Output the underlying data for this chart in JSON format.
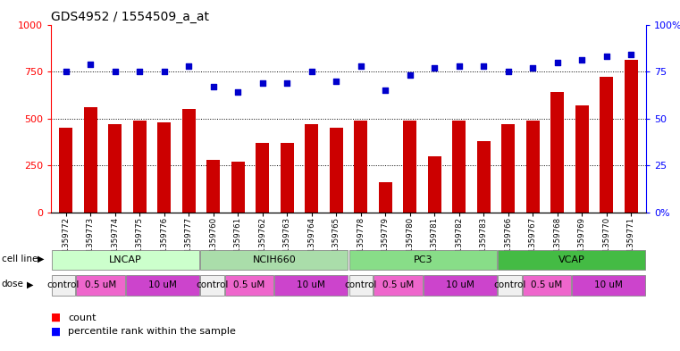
{
  "title": "GDS4952 / 1554509_a_at",
  "samples": [
    "GSM1359772",
    "GSM1359773",
    "GSM1359774",
    "GSM1359775",
    "GSM1359776",
    "GSM1359777",
    "GSM1359760",
    "GSM1359761",
    "GSM1359762",
    "GSM1359763",
    "GSM1359764",
    "GSM1359765",
    "GSM1359778",
    "GSM1359779",
    "GSM1359780",
    "GSM1359781",
    "GSM1359782",
    "GSM1359783",
    "GSM1359766",
    "GSM1359767",
    "GSM1359768",
    "GSM1359769",
    "GSM1359770",
    "GSM1359771"
  ],
  "bar_values": [
    450,
    560,
    470,
    490,
    480,
    550,
    280,
    270,
    370,
    370,
    470,
    450,
    490,
    160,
    490,
    300,
    490,
    380,
    470,
    490,
    640,
    570,
    720,
    810
  ],
  "dot_values": [
    75,
    79,
    75,
    75,
    75,
    78,
    67,
    64,
    69,
    69,
    75,
    70,
    78,
    65,
    73,
    77,
    78,
    78,
    75,
    77,
    80,
    81,
    83,
    84
  ],
  "cell_lines": [
    {
      "name": "LNCAP",
      "start": 0,
      "end": 6,
      "color": "#ccffcc"
    },
    {
      "name": "NCIH660",
      "start": 6,
      "end": 12,
      "color": "#aaddaa"
    },
    {
      "name": "PC3",
      "start": 12,
      "end": 18,
      "color": "#88dd88"
    },
    {
      "name": "VCAP",
      "start": 18,
      "end": 24,
      "color": "#44bb44"
    }
  ],
  "bar_color": "#cc0000",
  "dot_color": "#0000cc",
  "bg_color": "#ffffff",
  "ylim_left": [
    0,
    1000
  ],
  "ylim_right": [
    0,
    100
  ],
  "yticks_left": [
    0,
    250,
    500,
    750,
    1000
  ],
  "yticks_right": [
    0,
    25,
    50,
    75,
    100
  ],
  "grid_values": [
    250,
    500,
    750
  ],
  "title_fontsize": 10
}
